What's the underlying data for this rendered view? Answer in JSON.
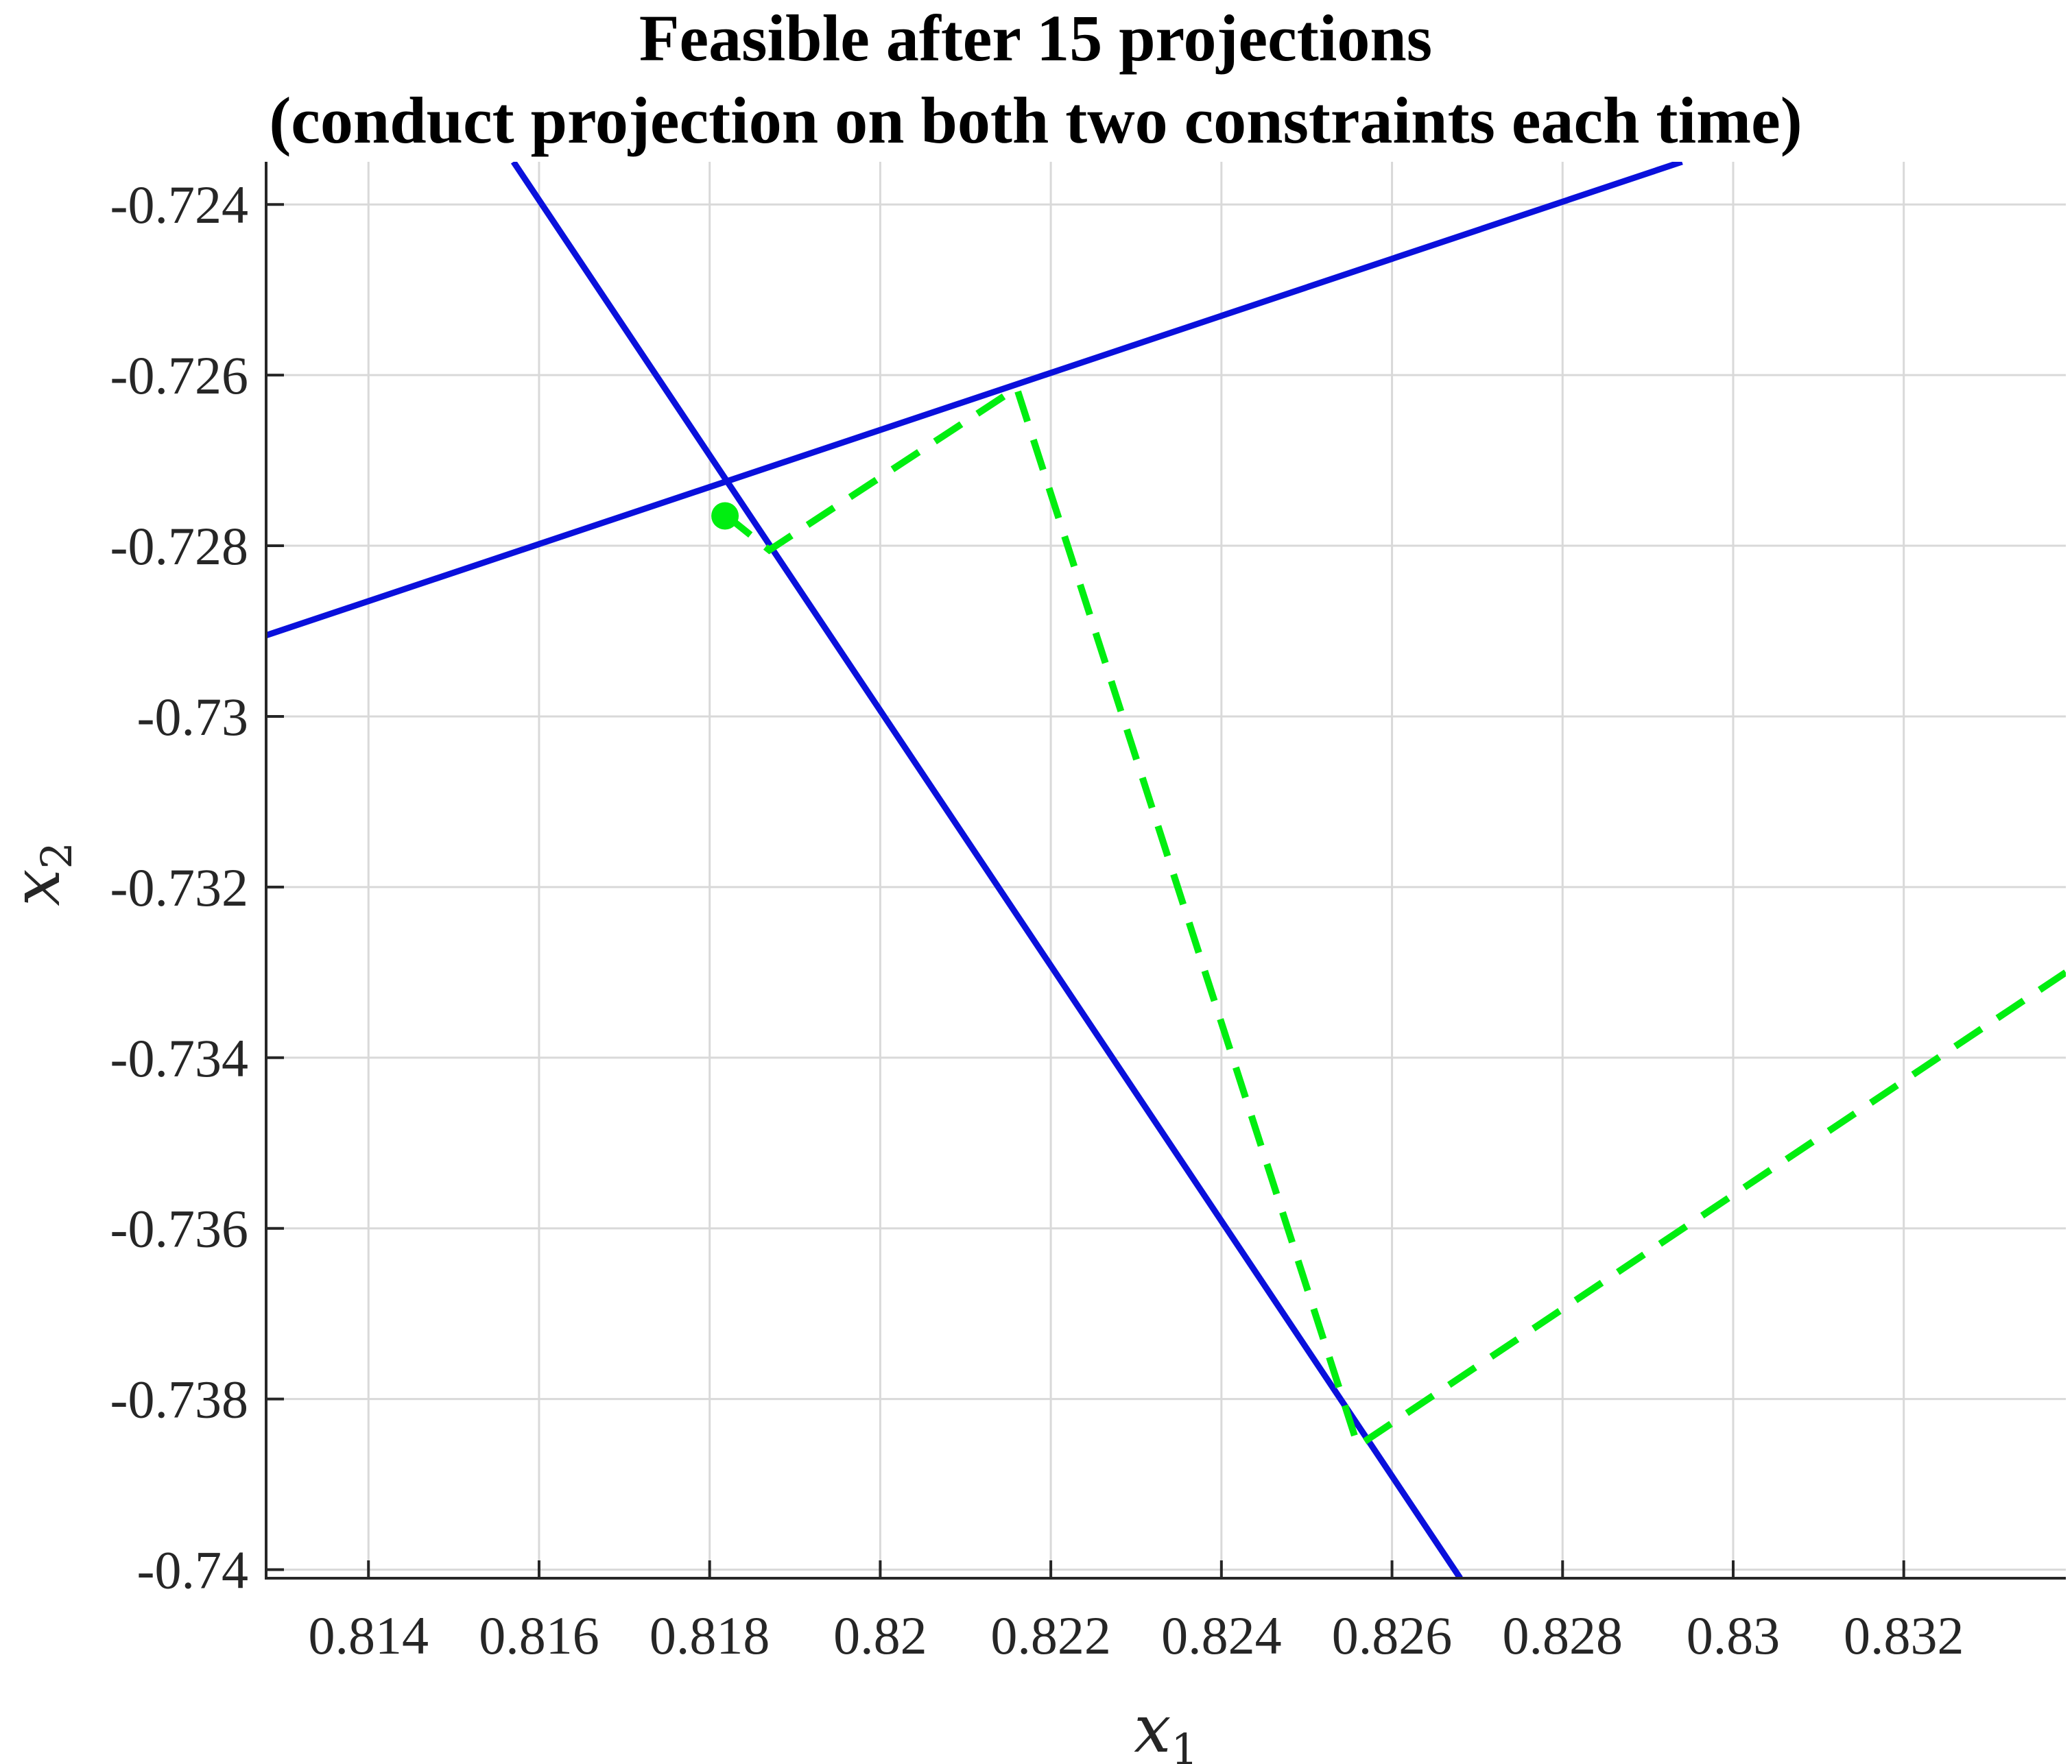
{
  "chart_data": {
    "type": "line",
    "title": [
      "Feasible after 15 projections",
      "(conduct projection on both two constraints each time)"
    ],
    "xlabel": {
      "base": "x",
      "sub": "1"
    },
    "ylabel": {
      "base": "x",
      "sub": "2"
    },
    "xlim": [
      0.8128,
      0.8339
    ],
    "ylim": [
      -0.7401,
      -0.7235
    ],
    "xticks": [
      0.814,
      0.816,
      0.818,
      0.82,
      0.822,
      0.824,
      0.826,
      0.828,
      0.83,
      0.832
    ],
    "xtick_labels": [
      "0.814",
      "0.816",
      "0.818",
      "0.82",
      "0.822",
      "0.824",
      "0.826",
      "0.828",
      "0.83",
      "0.832"
    ],
    "yticks": [
      -0.724,
      -0.726,
      -0.728,
      -0.73,
      -0.732,
      -0.734,
      -0.736,
      -0.738,
      -0.74
    ],
    "ytick_labels": [
      "-0.724",
      "-0.726",
      "-0.728",
      "-0.73",
      "-0.732",
      "-0.734",
      "-0.736",
      "-0.738",
      "-0.74"
    ],
    "grid": true,
    "colors": {
      "constraint": "#0a10dc",
      "path": "#00ee10",
      "grid": "#d9d9d9",
      "axis": "#262626"
    },
    "series": [
      {
        "kind": "constraint",
        "x": [
          0.8157,
          0.8268
        ],
        "y": [
          -0.7235,
          -0.7401
        ]
      },
      {
        "kind": "constraint",
        "x": [
          0.8128,
          0.8294
        ],
        "y": [
          -0.72905,
          -0.7235
        ]
      },
      {
        "kind": "projection-path",
        "x": [
          0.8339,
          0.8256,
          0.8216,
          0.8187,
          0.8182
        ],
        "y": [
          -0.733,
          -0.73855,
          -0.72615,
          -0.72805,
          -0.72765
        ]
      },
      {
        "kind": "feasible-point",
        "x": [
          0.81818
        ],
        "y": [
          -0.72765
        ]
      }
    ]
  }
}
